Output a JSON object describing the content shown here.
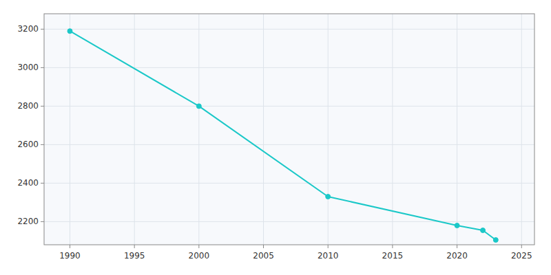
{
  "chart_data": {
    "type": "line",
    "x": [
      1990,
      2000,
      2010,
      2020,
      2022,
      2023
    ],
    "values": [
      3190,
      2800,
      2330,
      2180,
      2155,
      2105
    ],
    "color": "#1BC8C8",
    "marker": "circle",
    "xlim": [
      1988,
      2026
    ],
    "ylim": [
      2080,
      3280
    ],
    "xticks": [
      1990,
      1995,
      2000,
      2005,
      2010,
      2015,
      2020,
      2025
    ],
    "yticks": [
      2200,
      2400,
      2600,
      2800,
      3000,
      3200
    ],
    "grid": true
  }
}
